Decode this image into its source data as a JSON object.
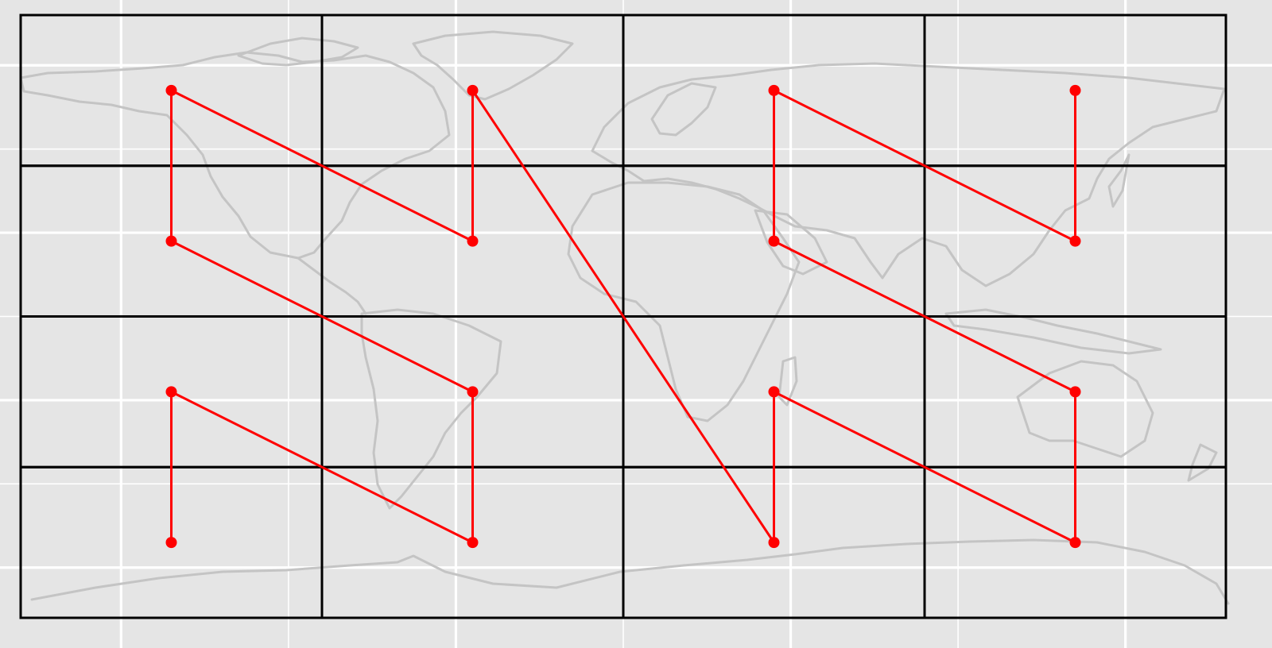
{
  "map": {
    "projection": "equirectangular",
    "extent": {
      "lon": [
        -180,
        180
      ],
      "lat": [
        -90,
        90
      ]
    },
    "background_color": "#e5e5e5",
    "gridline_color": "#ffffff",
    "land_color": "#c4c4c4",
    "grid_lines_lon": [
      -150,
      -100,
      -50,
      0,
      50,
      100,
      150
    ],
    "grid_lines_lat": [
      -75,
      -50,
      -25,
      0,
      25,
      50,
      75
    ],
    "cells": {
      "lon_breaks": [
        -180,
        -90,
        0,
        90,
        180
      ],
      "lat_breaks": [
        -90,
        -45,
        0,
        45,
        90
      ],
      "color": "#000000"
    },
    "path": {
      "color": "#ff0000",
      "points": [
        {
          "lon": -135,
          "lat": 67.5
        },
        {
          "lon": -135,
          "lat": 22.5
        },
        {
          "lon": -45,
          "lat": -22.5
        },
        {
          "lon": -45,
          "lat": -67.5
        },
        {
          "lon": -135,
          "lat": -22.5
        },
        {
          "lon": -135,
          "lat": -67.5
        }
      ],
      "routes": [
        [
          [
            -135,
            67.5
          ],
          [
            -135,
            22.5
          ],
          [
            -45,
            -22.5
          ],
          [
            -45,
            -67.5
          ],
          [
            -135,
            -22.5
          ],
          [
            -135,
            -67.5
          ]
        ],
        [
          [
            -135,
            67.5
          ],
          [
            -45,
            22.5
          ],
          [
            -45,
            67.5
          ],
          [
            45,
            -67.5
          ],
          [
            45,
            -22.5
          ],
          [
            135,
            -67.5
          ],
          [
            135,
            -22.5
          ],
          [
            45,
            22.5
          ],
          [
            45,
            67.5
          ],
          [
            135,
            22.5
          ],
          [
            135,
            67.5
          ]
        ]
      ]
    }
  }
}
